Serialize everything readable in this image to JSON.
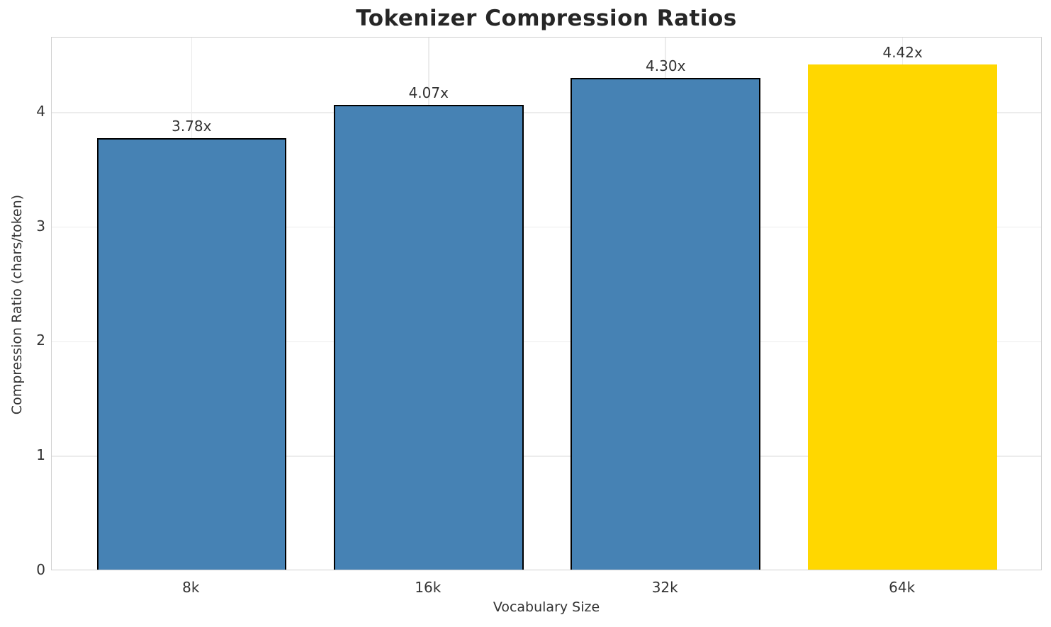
{
  "chart_data": {
    "type": "bar",
    "title": "Tokenizer Compression Ratios",
    "xlabel": "Vocabulary Size",
    "ylabel": "Compression Ratio (chars/token)",
    "categories": [
      "8k",
      "16k",
      "32k",
      "64k"
    ],
    "values": [
      3.78,
      4.07,
      4.3,
      4.42
    ],
    "bar_labels": [
      "3.78x",
      "4.07x",
      "4.30x",
      "4.42x"
    ],
    "bar_colors": [
      "#4682B4",
      "#4682B4",
      "#4682B4",
      "#FFD700"
    ],
    "bar_edge_colors": [
      "#000000",
      "#000000",
      "#000000",
      "none"
    ],
    "ylim": [
      0,
      4.655
    ],
    "yticks": [
      0,
      1,
      2,
      3,
      4
    ],
    "grid": true,
    "legend": "none",
    "colors": {
      "bar_default": "#4682B4",
      "bar_highlight": "#FFD700",
      "bar_edge": "#000000",
      "spine": "#d0d0d0",
      "gridline": "#ececec",
      "text": "#333333",
      "title_text": "#262626",
      "background": "#ffffff"
    }
  }
}
